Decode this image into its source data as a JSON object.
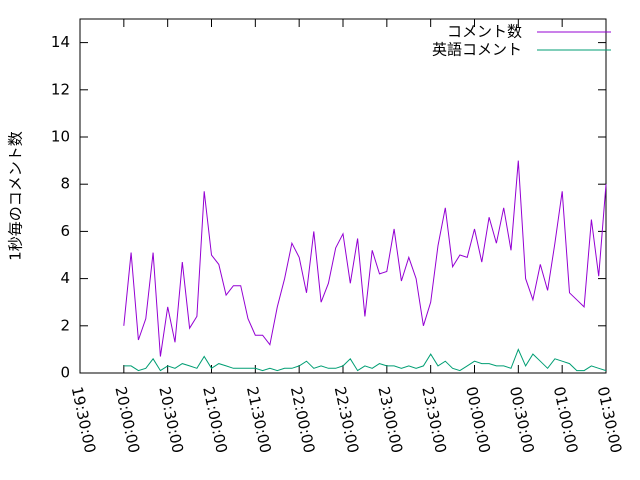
{
  "chart_data": {
    "type": "line",
    "y_label": "1秒毎のコメント数",
    "x": [
      "20:00:00",
      "20:05:00",
      "20:10:00",
      "20:15:00",
      "20:20:00",
      "20:25:00",
      "20:30:00",
      "20:35:00",
      "20:40:00",
      "20:45:00",
      "20:50:00",
      "20:55:00",
      "21:00:00",
      "21:05:00",
      "21:10:00",
      "21:15:00",
      "21:20:00",
      "21:25:00",
      "21:30:00",
      "21:35:00",
      "21:40:00",
      "21:45:00",
      "21:50:00",
      "21:55:00",
      "22:00:00",
      "22:05:00",
      "22:10:00",
      "22:15:00",
      "22:20:00",
      "22:25:00",
      "22:30:00",
      "22:35:00",
      "22:40:00",
      "22:45:00",
      "22:50:00",
      "22:55:00",
      "23:00:00",
      "23:05:00",
      "23:10:00",
      "23:15:00",
      "23:20:00",
      "23:25:00",
      "23:30:00",
      "23:35:00",
      "23:40:00",
      "23:45:00",
      "23:50:00",
      "23:55:00",
      "00:00:00",
      "00:05:00",
      "00:10:00",
      "00:15:00",
      "00:20:00",
      "00:25:00",
      "00:30:00",
      "00:35:00",
      "00:40:00",
      "00:45:00",
      "00:50:00",
      "00:55:00",
      "01:00:00",
      "01:05:00",
      "01:10:00",
      "01:15:00",
      "01:20:00",
      "01:25:00",
      "01:30:00"
    ],
    "series": [
      {
        "name": "コメント数",
        "color": "#9400d3",
        "values": [
          2.0,
          5.1,
          1.4,
          2.3,
          5.1,
          0.7,
          2.8,
          1.3,
          4.7,
          1.9,
          2.4,
          7.7,
          5.0,
          4.6,
          3.3,
          3.7,
          3.7,
          2.3,
          1.6,
          1.6,
          1.2,
          2.8,
          4.0,
          5.5,
          4.9,
          3.4,
          6.0,
          3.0,
          3.8,
          5.3,
          5.9,
          3.8,
          5.7,
          2.4,
          5.2,
          4.2,
          4.3,
          6.1,
          3.9,
          4.9,
          4.0,
          2.0,
          3.0,
          5.4,
          7.0,
          4.5,
          5.0,
          4.9,
          6.1,
          4.7,
          6.6,
          5.5,
          7.0,
          5.2,
          9.0,
          4.0,
          3.1,
          4.6,
          3.5,
          5.5,
          7.7,
          3.4,
          3.1,
          2.8,
          6.5,
          4.1,
          8.0
        ]
      },
      {
        "name": "英語コメント",
        "color": "#009e73",
        "values": [
          0.3,
          0.3,
          0.1,
          0.2,
          0.6,
          0.1,
          0.3,
          0.2,
          0.4,
          0.3,
          0.2,
          0.7,
          0.2,
          0.4,
          0.3,
          0.2,
          0.2,
          0.2,
          0.2,
          0.1,
          0.2,
          0.1,
          0.2,
          0.2,
          0.3,
          0.5,
          0.2,
          0.3,
          0.2,
          0.2,
          0.3,
          0.6,
          0.1,
          0.3,
          0.2,
          0.4,
          0.3,
          0.3,
          0.2,
          0.3,
          0.2,
          0.3,
          0.8,
          0.3,
          0.5,
          0.2,
          0.1,
          0.3,
          0.5,
          0.4,
          0.4,
          0.3,
          0.3,
          0.2,
          1.0,
          0.3,
          0.8,
          0.5,
          0.2,
          0.6,
          0.5,
          0.4,
          0.1,
          0.1,
          0.3,
          0.2,
          0.1
        ]
      }
    ],
    "xlim": [
      "19:30:00",
      "01:30:00"
    ],
    "xticks": [
      "19:30:00",
      "20:00:00",
      "20:30:00",
      "21:00:00",
      "21:30:00",
      "22:00:00",
      "22:30:00",
      "23:00:00",
      "23:30:00",
      "00:00:00",
      "00:30:00",
      "01:00:00",
      "01:30:00"
    ],
    "ylim": [
      0,
      15
    ],
    "yticks": [
      0,
      2,
      4,
      6,
      8,
      10,
      12,
      14
    ],
    "legend": "upper right"
  }
}
